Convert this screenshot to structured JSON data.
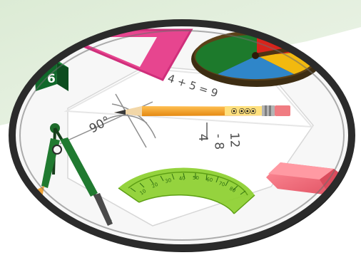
{
  "illustration": {
    "dice_face_number": "6",
    "equation_text": "4 + 5 = 9",
    "angle_label": "90°",
    "subtraction_top": "12",
    "subtraction_middle": "- 8",
    "subtraction_result": "4",
    "spinner_colors": [
      "#d8241c",
      "#f2b90f",
      "#2f86c9",
      "#1d7a2c"
    ]
  },
  "colors": {
    "background_green": "#e7f1e2",
    "frame_dark": "#2a2a2a",
    "triangle_pink": "#e94c92",
    "pencil_orange": "#f2a12a",
    "protractor_green": "#8ccf2e",
    "eraser_pink": "#ef6a78"
  }
}
